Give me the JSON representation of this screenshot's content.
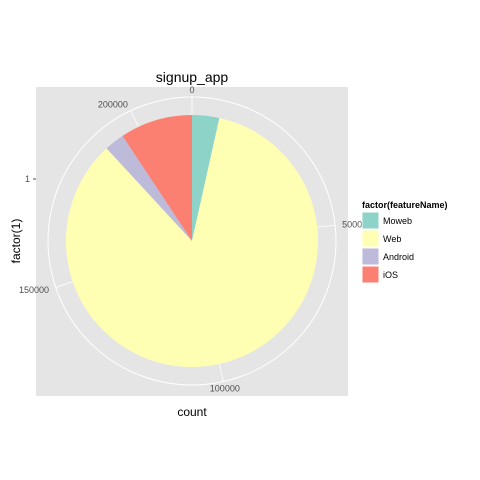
{
  "chart_data": {
    "type": "pie",
    "title": "signup_app",
    "xlabel": "count",
    "ylabel": "factor(1)",
    "y_tick_labels": [
      "1"
    ],
    "radial_ticks": [
      {
        "value": 0,
        "label": "0"
      },
      {
        "value": 50000,
        "label": "50000"
      },
      {
        "value": 100000,
        "label": "100000"
      },
      {
        "value": 150000,
        "label": "150000"
      },
      {
        "value": 200000,
        "label": "200000"
      }
    ],
    "categories": [
      "Moweb",
      "Web",
      "Android",
      "iOS"
    ],
    "values": [
      7500,
      182000,
      5500,
      20000
    ],
    "total": 215000,
    "colors": [
      "#8DD3C7",
      "#FFFFB3",
      "#BEBADA",
      "#FB8072"
    ],
    "panel_color": "#E5E5E5",
    "grid_color": "#FFFFFF",
    "legend": {
      "title": "factor(featureName)",
      "position": "right"
    },
    "grid": true
  }
}
